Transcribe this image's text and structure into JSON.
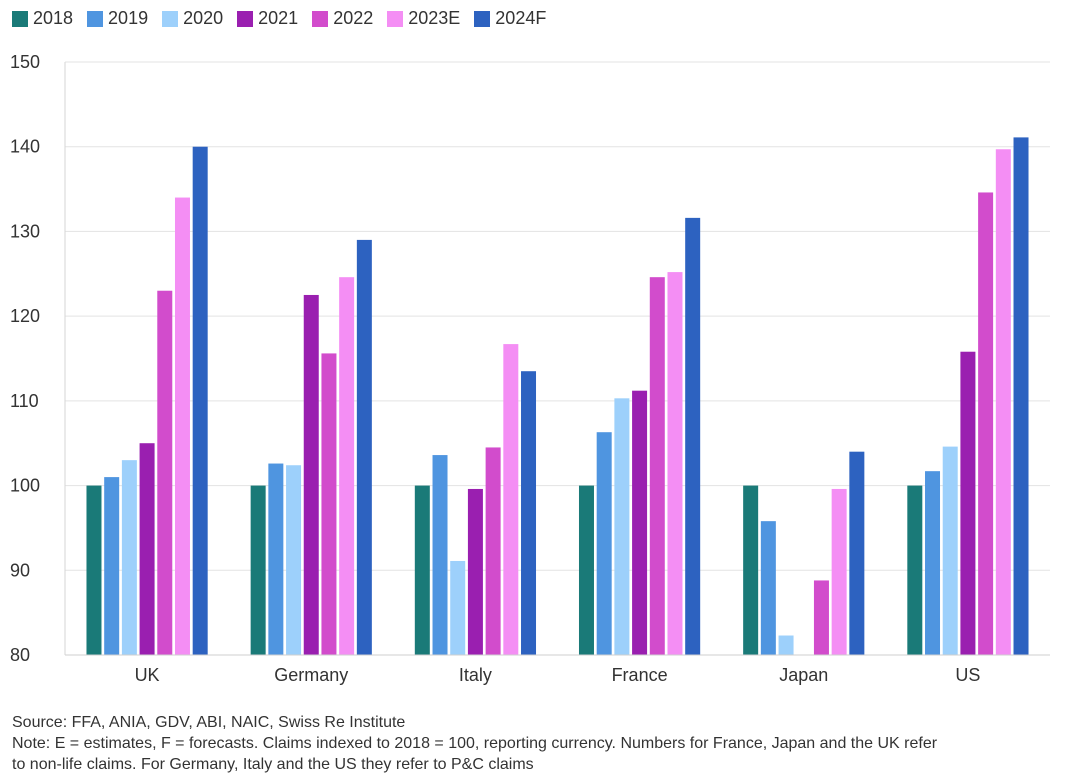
{
  "chart_data": {
    "type": "bar",
    "categories": [
      "UK",
      "Germany",
      "Italy",
      "France",
      "Japan",
      "US"
    ],
    "series": [
      {
        "name": "2018",
        "color": "#1a7a78",
        "values": [
          100,
          100,
          100,
          100,
          100,
          100
        ]
      },
      {
        "name": "2019",
        "color": "#4f95e0",
        "values": [
          101,
          102.6,
          103.6,
          106.3,
          95.8,
          101.7
        ]
      },
      {
        "name": "2020",
        "color": "#9dd0fb",
        "values": [
          103,
          102.4,
          91.1,
          110.3,
          82.3,
          104.6
        ]
      },
      {
        "name": "2021",
        "color": "#9a1fb0",
        "values": [
          105,
          122.5,
          99.6,
          111.2,
          null,
          115.8
        ]
      },
      {
        "name": "2022",
        "color": "#d24ccc",
        "values": [
          123,
          115.6,
          104.5,
          124.6,
          88.8,
          134.6
        ]
      },
      {
        "name": "2023E",
        "color": "#f48ef4",
        "values": [
          134,
          124.6,
          116.7,
          125.2,
          99.6,
          139.7
        ]
      },
      {
        "name": "2024F",
        "color": "#2d62c0",
        "values": [
          140,
          129,
          113.5,
          131.6,
          104,
          141.1
        ]
      }
    ],
    "ylim": [
      80,
      150
    ],
    "yticks": [
      80,
      90,
      100,
      110,
      120,
      130,
      140,
      150
    ],
    "ytick_labels": [
      "80",
      "90",
      "100",
      "110",
      "120",
      "130",
      "140",
      "150"
    ],
    "title": "",
    "xlabel": "",
    "ylabel": "",
    "grid": true,
    "legend_position": "top-left"
  },
  "footer": {
    "source": "Source: FFA, ANIA, GDV, ABI, NAIC, Swiss Re Institute",
    "note_line1": "Note: E = estimates, F = forecasts. Claims indexed to 2018 = 100, reporting currency. Numbers for France, Japan and the UK refer",
    "note_line2": "to non-life claims. For Germany, Italy and the US they refer to P&C claims"
  }
}
